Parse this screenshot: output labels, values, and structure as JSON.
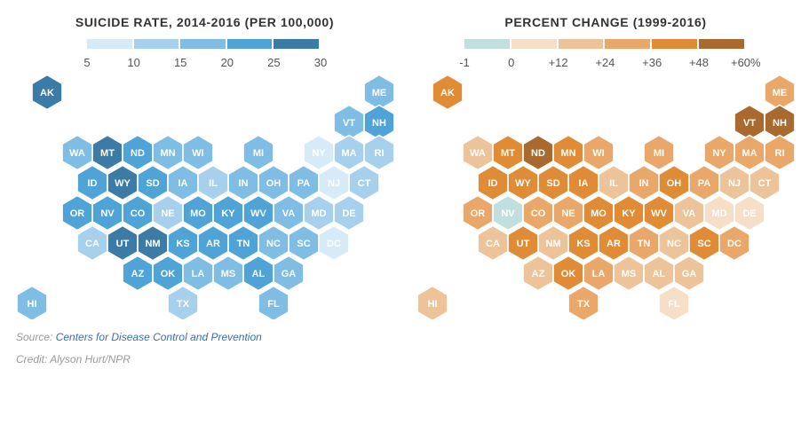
{
  "left_map": {
    "title": "SUICIDE RATE, 2014-2016 (PER 100,000)",
    "legend_colors": [
      "#d6ebf7",
      "#a7d0ec",
      "#7fbde4",
      "#4fa3d7",
      "#3c7ba6"
    ],
    "legend_ticks": [
      "5",
      "10",
      "15",
      "20",
      "25",
      "30"
    ],
    "states": [
      {
        "abbr": "AK",
        "color": "#3c7ba6"
      },
      {
        "abbr": "ME",
        "color": "#7fbde4"
      },
      {
        "abbr": "VT",
        "color": "#7fbde4"
      },
      {
        "abbr": "NH",
        "color": "#4fa3d7"
      },
      {
        "abbr": "WA",
        "color": "#7fbde4"
      },
      {
        "abbr": "MT",
        "color": "#3c7ba6"
      },
      {
        "abbr": "ND",
        "color": "#4fa3d7"
      },
      {
        "abbr": "MN",
        "color": "#7fbde4"
      },
      {
        "abbr": "WI",
        "color": "#7fbde4"
      },
      {
        "abbr": "MI",
        "color": "#7fbde4"
      },
      {
        "abbr": "NY",
        "color": "#d6ebf7"
      },
      {
        "abbr": "MA",
        "color": "#a7d0ec"
      },
      {
        "abbr": "RI",
        "color": "#a7d0ec"
      },
      {
        "abbr": "ID",
        "color": "#4fa3d7"
      },
      {
        "abbr": "WY",
        "color": "#3c7ba6"
      },
      {
        "abbr": "SD",
        "color": "#4fa3d7"
      },
      {
        "abbr": "IA",
        "color": "#7fbde4"
      },
      {
        "abbr": "IL",
        "color": "#a7d0ec"
      },
      {
        "abbr": "IN",
        "color": "#7fbde4"
      },
      {
        "abbr": "OH",
        "color": "#7fbde4"
      },
      {
        "abbr": "PA",
        "color": "#7fbde4"
      },
      {
        "abbr": "NJ",
        "color": "#d6ebf7"
      },
      {
        "abbr": "CT",
        "color": "#a7d0ec"
      },
      {
        "abbr": "OR",
        "color": "#4fa3d7"
      },
      {
        "abbr": "NV",
        "color": "#4fa3d7"
      },
      {
        "abbr": "CO",
        "color": "#4fa3d7"
      },
      {
        "abbr": "NE",
        "color": "#a7d0ec"
      },
      {
        "abbr": "MO",
        "color": "#4fa3d7"
      },
      {
        "abbr": "KY",
        "color": "#4fa3d7"
      },
      {
        "abbr": "WV",
        "color": "#4fa3d7"
      },
      {
        "abbr": "VA",
        "color": "#7fbde4"
      },
      {
        "abbr": "MD",
        "color": "#a7d0ec"
      },
      {
        "abbr": "DE",
        "color": "#a7d0ec"
      },
      {
        "abbr": "CA",
        "color": "#a7d0ec"
      },
      {
        "abbr": "UT",
        "color": "#3c7ba6"
      },
      {
        "abbr": "NM",
        "color": "#3c7ba6"
      },
      {
        "abbr": "KS",
        "color": "#4fa3d7"
      },
      {
        "abbr": "AR",
        "color": "#4fa3d7"
      },
      {
        "abbr": "TN",
        "color": "#4fa3d7"
      },
      {
        "abbr": "NC",
        "color": "#7fbde4"
      },
      {
        "abbr": "SC",
        "color": "#7fbde4"
      },
      {
        "abbr": "DC",
        "color": "#d6ebf7"
      },
      {
        "abbr": "AZ",
        "color": "#4fa3d7"
      },
      {
        "abbr": "OK",
        "color": "#4fa3d7"
      },
      {
        "abbr": "LA",
        "color": "#7fbde4"
      },
      {
        "abbr": "MS",
        "color": "#7fbde4"
      },
      {
        "abbr": "AL",
        "color": "#4fa3d7"
      },
      {
        "abbr": "GA",
        "color": "#7fbde4"
      },
      {
        "abbr": "HI",
        "color": "#7fbde4"
      },
      {
        "abbr": "TX",
        "color": "#a7d0ec"
      },
      {
        "abbr": "FL",
        "color": "#7fbde4"
      }
    ]
  },
  "right_map": {
    "title": "PERCENT CHANGE (1999-2016)",
    "legend_colors": [
      "#c3dede",
      "#f5dfc9",
      "#edc49a",
      "#e9a869",
      "#e08b35",
      "#a86a2e"
    ],
    "legend_ticks": [
      "-1",
      "0",
      "+12",
      "+24",
      "+36",
      "+48",
      "+60%"
    ],
    "states": [
      {
        "abbr": "AK",
        "color": "#e08b35"
      },
      {
        "abbr": "ME",
        "color": "#e9a869"
      },
      {
        "abbr": "VT",
        "color": "#a86a2e"
      },
      {
        "abbr": "NH",
        "color": "#a86a2e"
      },
      {
        "abbr": "WA",
        "color": "#edc49a"
      },
      {
        "abbr": "MT",
        "color": "#e08b35"
      },
      {
        "abbr": "ND",
        "color": "#a86a2e"
      },
      {
        "abbr": "MN",
        "color": "#e08b35"
      },
      {
        "abbr": "WI",
        "color": "#e9a869"
      },
      {
        "abbr": "MI",
        "color": "#e9a869"
      },
      {
        "abbr": "NY",
        "color": "#e9a869"
      },
      {
        "abbr": "MA",
        "color": "#e9a869"
      },
      {
        "abbr": "RI",
        "color": "#e9a869"
      },
      {
        "abbr": "ID",
        "color": "#e08b35"
      },
      {
        "abbr": "WY",
        "color": "#e08b35"
      },
      {
        "abbr": "SD",
        "color": "#e08b35"
      },
      {
        "abbr": "IA",
        "color": "#e08b35"
      },
      {
        "abbr": "IL",
        "color": "#edc49a"
      },
      {
        "abbr": "IN",
        "color": "#e9a869"
      },
      {
        "abbr": "OH",
        "color": "#e08b35"
      },
      {
        "abbr": "PA",
        "color": "#e9a869"
      },
      {
        "abbr": "NJ",
        "color": "#edc49a"
      },
      {
        "abbr": "CT",
        "color": "#edc49a"
      },
      {
        "abbr": "OR",
        "color": "#e9a869"
      },
      {
        "abbr": "NV",
        "color": "#c3dede"
      },
      {
        "abbr": "CO",
        "color": "#e9a869"
      },
      {
        "abbr": "NE",
        "color": "#e9a869"
      },
      {
        "abbr": "MO",
        "color": "#e08b35"
      },
      {
        "abbr": "KY",
        "color": "#e08b35"
      },
      {
        "abbr": "WV",
        "color": "#e08b35"
      },
      {
        "abbr": "VA",
        "color": "#edc49a"
      },
      {
        "abbr": "MD",
        "color": "#f5dfc9"
      },
      {
        "abbr": "DE",
        "color": "#f5dfc9"
      },
      {
        "abbr": "CA",
        "color": "#edc49a"
      },
      {
        "abbr": "UT",
        "color": "#e08b35"
      },
      {
        "abbr": "NM",
        "color": "#edc49a"
      },
      {
        "abbr": "KS",
        "color": "#e08b35"
      },
      {
        "abbr": "AR",
        "color": "#e08b35"
      },
      {
        "abbr": "TN",
        "color": "#e9a869"
      },
      {
        "abbr": "NC",
        "color": "#edc49a"
      },
      {
        "abbr": "SC",
        "color": "#e08b35"
      },
      {
        "abbr": "DC",
        "color": "#e9a869"
      },
      {
        "abbr": "AZ",
        "color": "#edc49a"
      },
      {
        "abbr": "OK",
        "color": "#e08b35"
      },
      {
        "abbr": "LA",
        "color": "#e9a869"
      },
      {
        "abbr": "MS",
        "color": "#edc49a"
      },
      {
        "abbr": "AL",
        "color": "#edc49a"
      },
      {
        "abbr": "GA",
        "color": "#edc49a"
      },
      {
        "abbr": "HI",
        "color": "#edc49a"
      },
      {
        "abbr": "TX",
        "color": "#e9a869"
      },
      {
        "abbr": "FL",
        "color": "#f5dfc9"
      }
    ]
  },
  "footer": {
    "source_prefix": "Source: ",
    "source_link": "Centers for Disease Control and Prevention",
    "credit": "Credit: Alyson Hurt/NPR"
  }
}
